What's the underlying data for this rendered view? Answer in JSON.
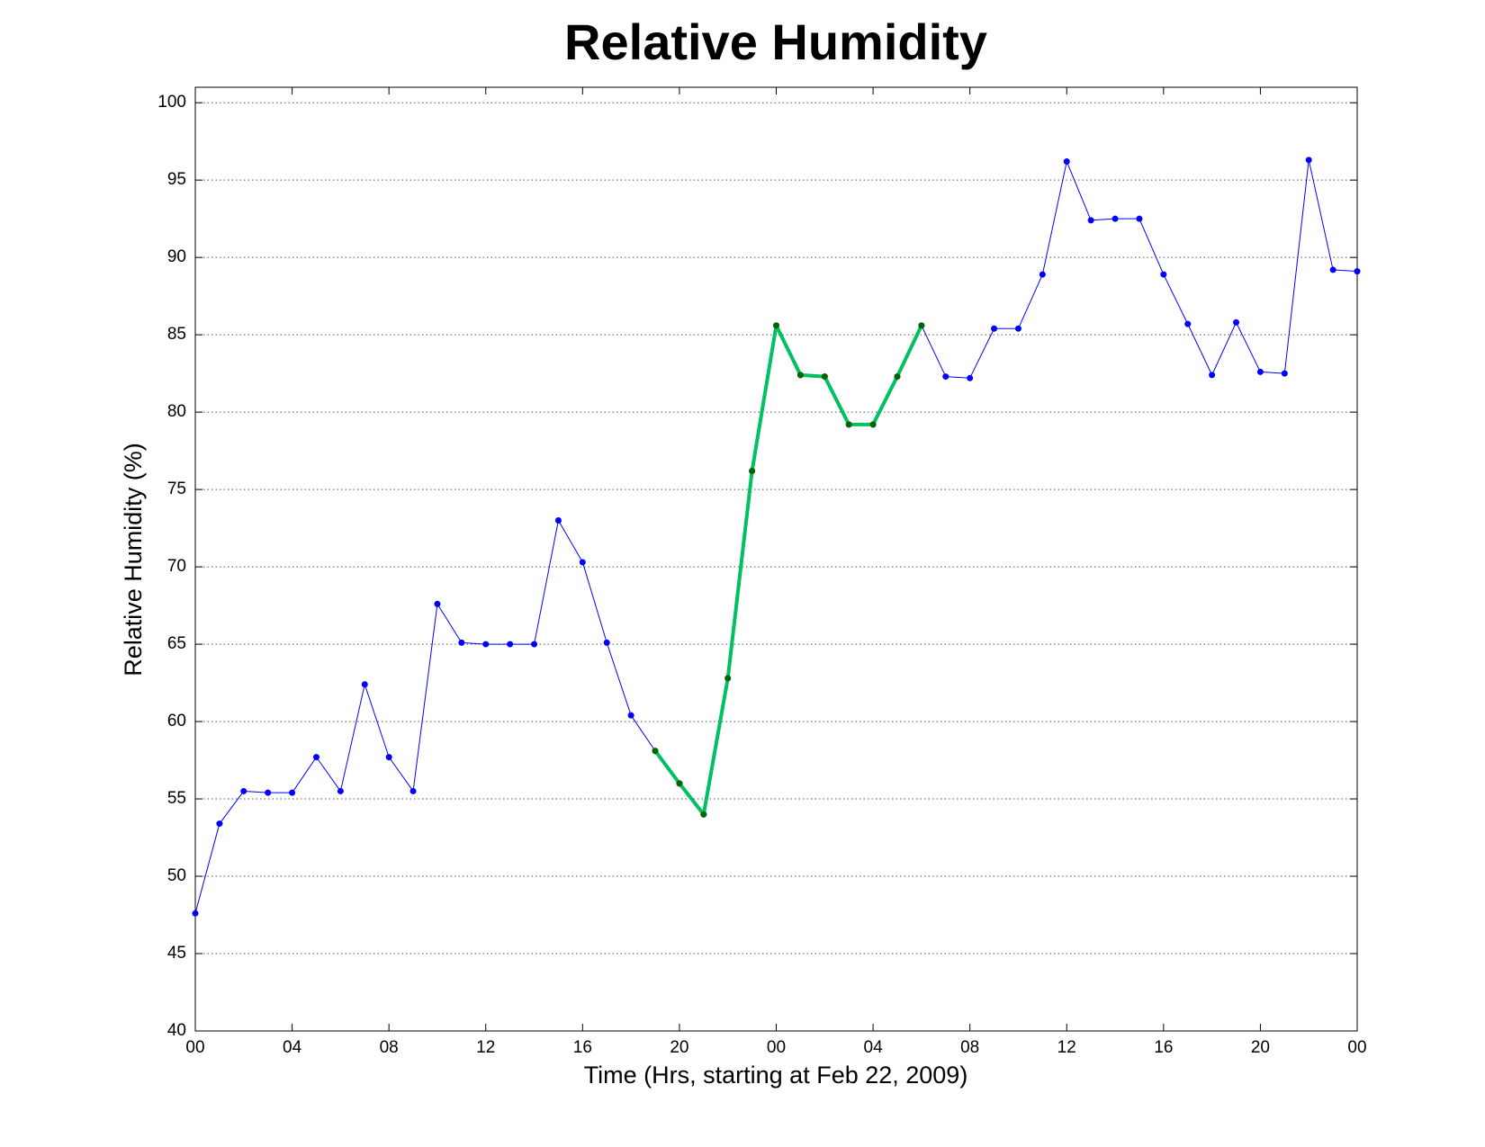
{
  "chart_data": {
    "type": "line",
    "title": "Relative Humidity",
    "x_label": "Time (Hrs, starting at Feb 22, 2009)",
    "y_label": "Relative Humidity (%)",
    "x": [
      0,
      1,
      2,
      3,
      4,
      5,
      6,
      7,
      8,
      9,
      10,
      11,
      12,
      13,
      14,
      15,
      16,
      17,
      18,
      19,
      20,
      21,
      22,
      23,
      24,
      25,
      26,
      27,
      28,
      29,
      30,
      31,
      32,
      33,
      34,
      35,
      36,
      37,
      38,
      39,
      40,
      41,
      42,
      43,
      44,
      45,
      46,
      47,
      48
    ],
    "series": [
      {
        "color": "#0000ff",
        "marker_color": "#0000ff",
        "line_width": 1,
        "values": [
          47.6,
          53.4,
          55.5,
          55.4,
          55.4,
          57.7,
          55.5,
          62.4,
          57.7,
          55.5,
          67.6,
          65.1,
          65.0,
          65.0,
          65.0,
          73.0,
          70.3,
          65.1,
          60.4,
          58.1,
          56.0,
          54.0,
          62.8,
          76.2,
          85.6,
          82.4,
          82.3,
          79.2,
          79.2,
          82.3,
          85.6,
          82.3,
          82.2,
          85.4,
          85.4,
          88.9,
          96.2,
          92.4,
          92.5,
          92.5,
          88.9,
          85.7,
          82.4,
          85.8,
          82.6,
          82.5,
          96.3,
          89.2,
          89.1
        ]
      },
      {
        "color": "#00c060",
        "marker_color": "#006400",
        "line_width": 4,
        "values": [
          null,
          null,
          null,
          null,
          null,
          null,
          null,
          null,
          null,
          null,
          null,
          null,
          null,
          null,
          null,
          null,
          null,
          null,
          null,
          58.1,
          56.0,
          54.0,
          62.8,
          76.2,
          85.6,
          82.4,
          82.3,
          79.2,
          79.2,
          82.3,
          85.6,
          null,
          null,
          null,
          null,
          null,
          null,
          null,
          null,
          null,
          null,
          null,
          null,
          null,
          null,
          null,
          null,
          null,
          null
        ]
      }
    ],
    "xlim": [
      0,
      48
    ],
    "xticks": [
      {
        "value": 0,
        "label": "00"
      },
      {
        "value": 4,
        "label": "04"
      },
      {
        "value": 8,
        "label": "08"
      },
      12,
      16,
      20,
      {
        "value": 24,
        "label": "00"
      },
      {
        "value": 28,
        "label": "04"
      },
      {
        "value": 32,
        "label": "08"
      },
      {
        "value": 36,
        "label": "12"
      },
      {
        "value": 40,
        "label": "16"
      },
      {
        "value": 44,
        "label": "20"
      },
      {
        "value": 48,
        "label": "00"
      }
    ],
    "ylim": [
      40,
      101
    ],
    "yticks": [
      40,
      45,
      50,
      55,
      60,
      65,
      70,
      75,
      80,
      85,
      90,
      95,
      100
    ],
    "grid": true
  }
}
